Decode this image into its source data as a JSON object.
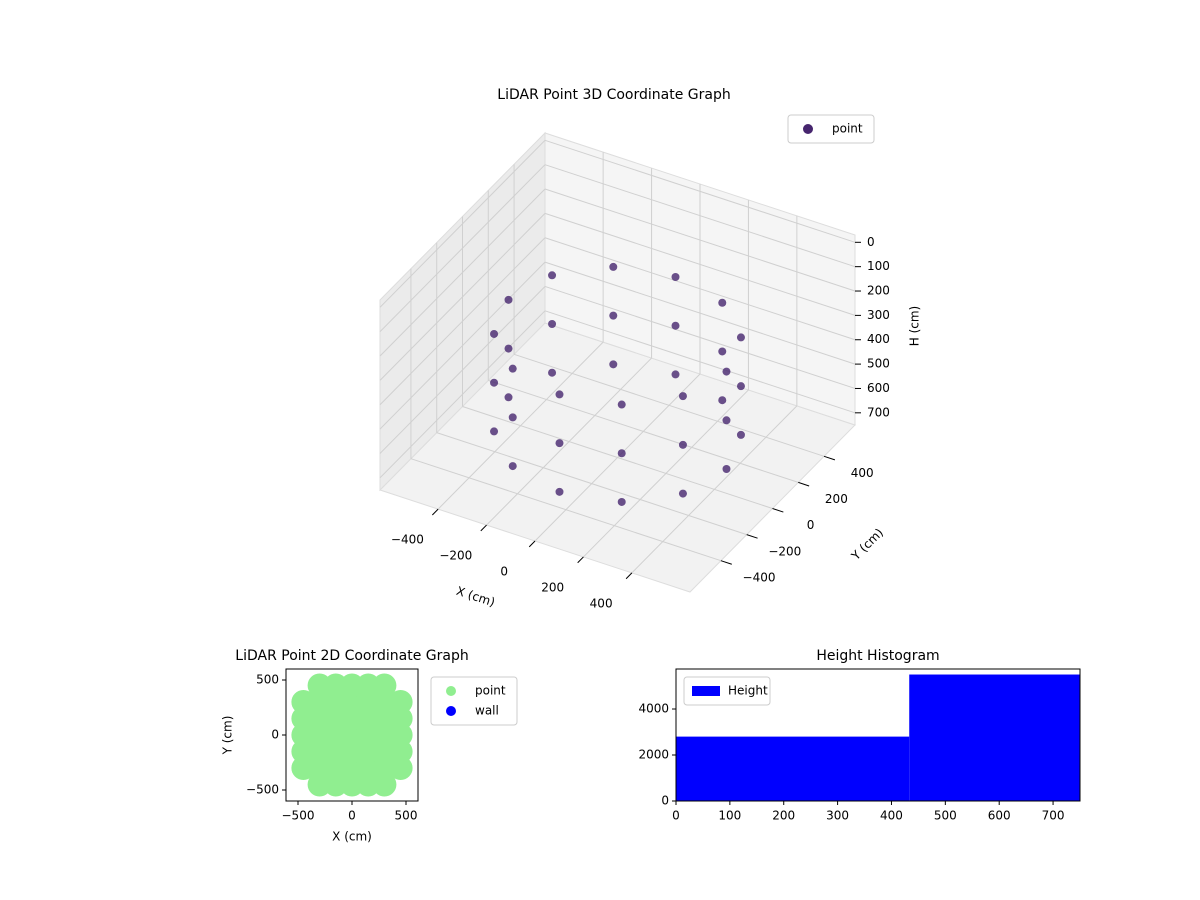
{
  "chart_data": [
    {
      "type": "scatter3d",
      "title": "LiDAR Point 3D Coordinate Graph",
      "xlabel": "X (cm)",
      "ylabel": "Y (cm)",
      "zlabel": "H (cm)",
      "xlim": [
        -640,
        640
      ],
      "ylim": [
        -640,
        640
      ],
      "zlim": [
        750,
        -30
      ],
      "xticks": [
        {
          "value": -400,
          "label": "−400"
        },
        {
          "value": -200,
          "label": "−200"
        },
        0,
        200,
        400
      ],
      "yticks": [
        {
          "value": -400,
          "label": "−400"
        },
        {
          "value": -200,
          "label": "−200"
        },
        0,
        200,
        400
      ],
      "zticks": [
        0,
        100,
        200,
        300,
        400,
        500,
        600,
        700
      ],
      "legend": "upper right",
      "grid": true,
      "series": [
        {
          "name": "point",
          "color": "#46256e",
          "x": [
            450,
            450,
            450,
            390,
            390,
            390,
            225,
            225,
            225,
            0,
            0,
            0,
            -225,
            -225,
            -225,
            -390,
            -390,
            -390,
            -450,
            -450,
            -450,
            -390,
            -390,
            -390,
            -225,
            -225,
            -225,
            0,
            0,
            0,
            225,
            225,
            225,
            390,
            390,
            390
          ],
          "y": [
            0,
            0,
            0,
            225,
            225,
            225,
            390,
            390,
            390,
            450,
            450,
            450,
            390,
            390,
            390,
            225,
            225,
            225,
            0,
            0,
            0,
            -225,
            -225,
            -225,
            -390,
            -390,
            -390,
            -450,
            -450,
            -450,
            -390,
            -390,
            -390,
            -225,
            -225,
            -225
          ],
          "z": [
            250,
            450,
            650,
            250,
            450,
            650,
            250,
            450,
            650,
            250,
            450,
            650,
            250,
            450,
            650,
            250,
            450,
            650,
            250,
            450,
            650,
            250,
            450,
            650,
            250,
            450,
            650,
            250,
            450,
            650,
            250,
            450,
            650,
            250,
            450,
            650
          ]
        }
      ]
    },
    {
      "type": "scatter",
      "title": "LiDAR Point 2D Coordinate Graph",
      "xlabel": "X (cm)",
      "ylabel": "Y (cm)",
      "xlim": [
        -611,
        611
      ],
      "ylim": [
        -600,
        600
      ],
      "xticks": [
        {
          "value": -500,
          "label": "−500"
        },
        0,
        500
      ],
      "yticks": [
        {
          "value": -500,
          "label": "−500"
        },
        0,
        500
      ],
      "legend": "outside right",
      "series": [
        {
          "name": "point",
          "color": "#90ee90",
          "x": [
            -300,
            -150,
            0,
            150,
            300,
            -450,
            -300,
            -150,
            0,
            150,
            300,
            450,
            -450,
            -300,
            -150,
            0,
            150,
            300,
            450,
            -450,
            -300,
            -150,
            0,
            150,
            300,
            450,
            -450,
            -300,
            -150,
            0,
            150,
            300,
            450,
            -450,
            -300,
            -150,
            0,
            150,
            300,
            450,
            -300,
            -150,
            0,
            150,
            300
          ],
          "y": [
            -450,
            -450,
            -450,
            -450,
            -450,
            -300,
            -300,
            -300,
            -300,
            -300,
            -300,
            -300,
            -150,
            -150,
            -150,
            -150,
            -150,
            -150,
            -150,
            0,
            0,
            0,
            0,
            0,
            0,
            0,
            150,
            150,
            150,
            150,
            150,
            150,
            150,
            300,
            300,
            300,
            300,
            300,
            300,
            300,
            450,
            450,
            450,
            450,
            450
          ]
        },
        {
          "name": "wall",
          "color": "#0000ff",
          "x": [],
          "y": []
        }
      ]
    },
    {
      "type": "histogram",
      "title": "Height Histogram",
      "xlim": [
        0,
        750
      ],
      "ylim": [
        0,
        5740
      ],
      "xticks": [
        0,
        100,
        200,
        300,
        400,
        500,
        600,
        700
      ],
      "yticks": [
        0,
        2000,
        4000
      ],
      "legend": "upper left",
      "series": [
        {
          "name": "Height",
          "color": "#0000ff",
          "bins": [
            0,
            433,
            750
          ],
          "counts": [
            2800,
            5500
          ]
        }
      ]
    }
  ]
}
